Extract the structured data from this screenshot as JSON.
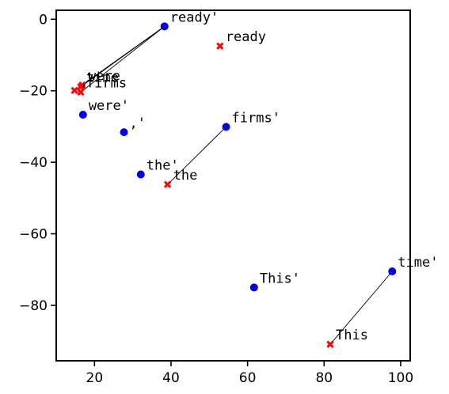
{
  "chart_data": {
    "type": "scatter",
    "title": "",
    "xlabel": "",
    "ylabel": "",
    "xlim": [
      10,
      102.5
    ],
    "ylim": [
      -95.5,
      2.5
    ],
    "xticks": [
      20,
      40,
      60,
      80,
      100
    ],
    "yticks": [
      0,
      -20,
      -40,
      -60,
      -80
    ],
    "xtick_labels": [
      "20",
      "40",
      "60",
      "80",
      "100"
    ],
    "ytick_labels": [
      "0",
      "−20",
      "−40",
      "−60",
      "−80"
    ],
    "grid": false,
    "series": [
      {
        "marker": "circle",
        "color": "#0000ee",
        "points": [
          {
            "label": "ready'",
            "x": 38.3,
            "y": -2.0
          },
          {
            "label": "were'",
            "x": 17.0,
            "y": -26.7
          },
          {
            "label": ",'",
            "x": 27.7,
            "y": -31.6
          },
          {
            "label": "firms'",
            "x": 54.4,
            "y": -30.1
          },
          {
            "label": "the'",
            "x": 32.1,
            "y": -43.4
          },
          {
            "label": "This'",
            "x": 61.7,
            "y": -75.0
          },
          {
            "label": "time'",
            "x": 97.8,
            "y": -70.5
          }
        ]
      },
      {
        "marker": "x",
        "color": "#ff0000",
        "points": [
          {
            "label": "ready",
            "x": 52.8,
            "y": -7.5
          },
          {
            "label": "were",
            "x": 16.8,
            "y": -18.4
          },
          {
            "label": "time",
            "x": 16.4,
            "y": -18.9
          },
          {
            "label": ",",
            "x": 14.8,
            "y": -19.9
          },
          {
            "label": "firms",
            "x": 16.4,
            "y": -20.4
          },
          {
            "label": "the",
            "x": 39.1,
            "y": -46.2
          },
          {
            "label": "This",
            "x": 81.6,
            "y": -90.9
          }
        ]
      }
    ],
    "connectors": [
      {
        "from": [
          38.3,
          -2.0
        ],
        "to": [
          16.8,
          -18.4
        ]
      },
      {
        "from": [
          38.3,
          -2.0
        ],
        "to": [
          16.4,
          -18.9
        ]
      },
      {
        "from": [
          38.3,
          -2.0
        ],
        "to": [
          14.8,
          -19.9
        ]
      },
      {
        "from": [
          38.3,
          -2.0
        ],
        "to": [
          16.4,
          -20.4
        ]
      },
      {
        "from": [
          54.4,
          -30.1
        ],
        "to": [
          39.1,
          -46.2
        ]
      },
      {
        "from": [
          97.8,
          -70.5
        ],
        "to": [
          81.6,
          -90.9
        ]
      }
    ]
  }
}
